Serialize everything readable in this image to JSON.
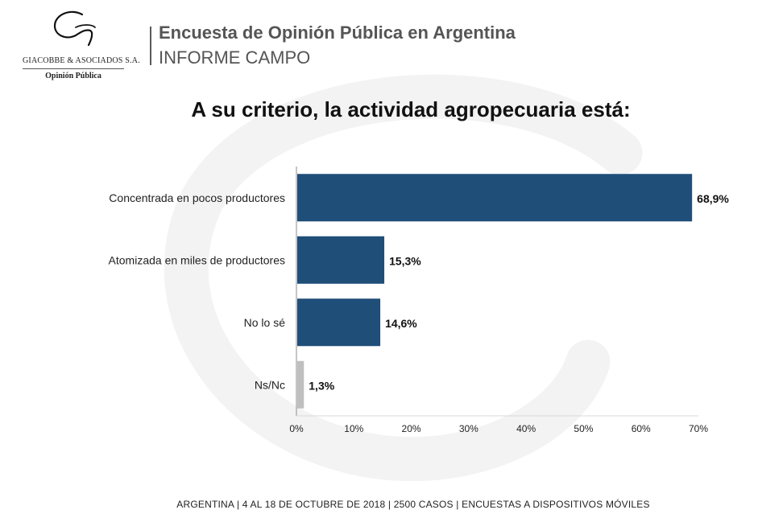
{
  "header": {
    "title": "Encuesta de Opinión Pública en Argentina",
    "subtitle": "INFORME CAMPO"
  },
  "logo": {
    "company": "GIACOBBE & ASOCIADOS S.A.",
    "tagline": "Opinión Pública"
  },
  "footer": {
    "text": "ARGENTINA | 4 AL 18 DE OCTUBRE DE 2018 | 2500 CASOS | ENCUESTAS A DISPOSITIVOS MÓVILES"
  },
  "colors": {
    "bar_primary": "#1f4e79",
    "bar_secondary": "#bfbfbf"
  },
  "chart_data": {
    "type": "bar",
    "orientation": "horizontal",
    "title": "A su criterio, la actividad agropecuaria está:",
    "categories": [
      "Concentrada en pocos productores",
      "Atomizada en miles de productores",
      "No lo sé",
      "Ns/Nc"
    ],
    "values": [
      68.9,
      15.3,
      14.6,
      1.3
    ],
    "value_labels": [
      "68,9%",
      "15,3%",
      "14,6%",
      "1,3%"
    ],
    "xlim": [
      0,
      70
    ],
    "xticks": [
      "0%",
      "10%",
      "20%",
      "30%",
      "40%",
      "50%",
      "60%",
      "70%"
    ],
    "grid": false,
    "legend": "none"
  }
}
